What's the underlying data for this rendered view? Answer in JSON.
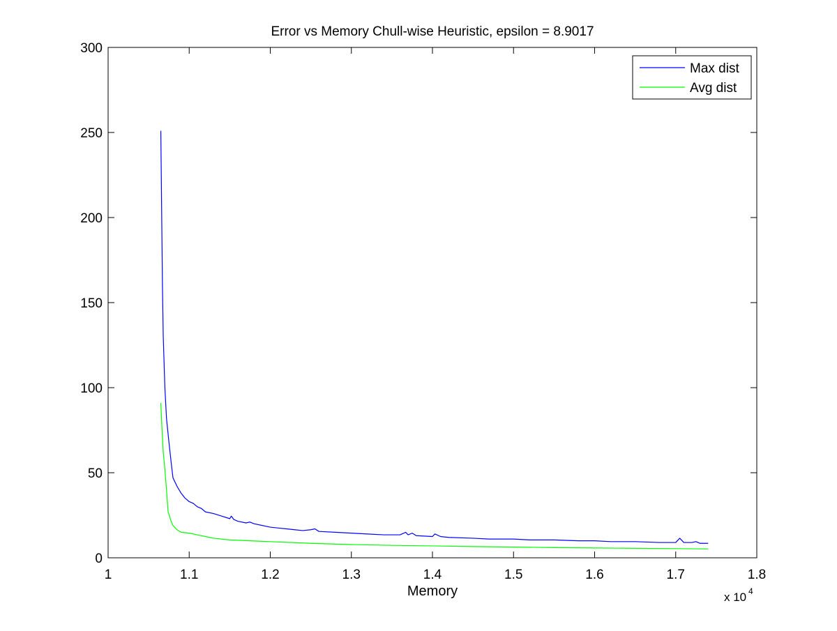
{
  "chart_data": {
    "type": "line",
    "title": "Error vs Memory Chull-wise Heuristic, epsilon = 8.9017",
    "xlabel": "Memory",
    "ylabel": "",
    "x_exponent_label": "x 10",
    "x_exponent_power": "4",
    "xlim": [
      1.0,
      1.8
    ],
    "ylim": [
      0,
      300
    ],
    "x_ticks": [
      1.0,
      1.1,
      1.2,
      1.3,
      1.4,
      1.5,
      1.6,
      1.7,
      1.8
    ],
    "x_tick_labels": [
      "1",
      "1.1",
      "1.2",
      "1.3",
      "1.4",
      "1.5",
      "1.6",
      "1.7",
      "1.8"
    ],
    "y_ticks": [
      0,
      50,
      100,
      150,
      200,
      250,
      300
    ],
    "y_tick_labels": [
      "0",
      "50",
      "100",
      "150",
      "200",
      "250",
      "300"
    ],
    "grid": false,
    "legend_position": "top-right",
    "series": [
      {
        "name": "Max dist",
        "color": "#0000ff",
        "x": [
          1.065,
          1.066,
          1.067,
          1.068,
          1.07,
          1.072,
          1.075,
          1.078,
          1.08,
          1.085,
          1.09,
          1.095,
          1.1,
          1.105,
          1.11,
          1.115,
          1.12,
          1.13,
          1.14,
          1.15,
          1.152,
          1.155,
          1.16,
          1.17,
          1.175,
          1.18,
          1.19,
          1.2,
          1.21,
          1.22,
          1.23,
          1.24,
          1.25,
          1.255,
          1.26,
          1.28,
          1.3,
          1.32,
          1.34,
          1.36,
          1.367,
          1.37,
          1.375,
          1.38,
          1.4,
          1.403,
          1.41,
          1.42,
          1.45,
          1.47,
          1.5,
          1.52,
          1.55,
          1.58,
          1.6,
          1.62,
          1.65,
          1.68,
          1.7,
          1.705,
          1.71,
          1.72,
          1.725,
          1.73,
          1.74
        ],
        "y": [
          251,
          205,
          160,
          130,
          100,
          82,
          68,
          55,
          47,
          42,
          38,
          35,
          33,
          32,
          30,
          29,
          27,
          26,
          24.5,
          23,
          24.5,
          22.5,
          21.5,
          20.5,
          21,
          20,
          19,
          18,
          17.5,
          17,
          16.5,
          16,
          16.5,
          17,
          15.5,
          15,
          14.5,
          14,
          13.5,
          13.5,
          15,
          13.5,
          14.5,
          13,
          12.5,
          14,
          12.5,
          12,
          11.5,
          11,
          11,
          10.5,
          10.5,
          10,
          10,
          9.5,
          9.5,
          9,
          9,
          11.5,
          9,
          9,
          9.5,
          8.5,
          8.5
        ]
      },
      {
        "name": "Avg dist",
        "color": "#00ff00",
        "x": [
          1.065,
          1.066,
          1.068,
          1.07,
          1.072,
          1.074,
          1.076,
          1.078,
          1.08,
          1.085,
          1.09,
          1.1,
          1.11,
          1.12,
          1.13,
          1.15,
          1.2,
          1.25,
          1.3,
          1.35,
          1.4,
          1.45,
          1.5,
          1.55,
          1.6,
          1.65,
          1.7,
          1.74
        ],
        "y": [
          91,
          80,
          62,
          52,
          40,
          27,
          24,
          21,
          19,
          16.5,
          15,
          14.5,
          13.5,
          12.5,
          11.5,
          10.5,
          9.5,
          8.5,
          7.8,
          7.3,
          7,
          6.6,
          6.3,
          6,
          5.8,
          5.6,
          5.4,
          5.2
        ]
      }
    ]
  }
}
